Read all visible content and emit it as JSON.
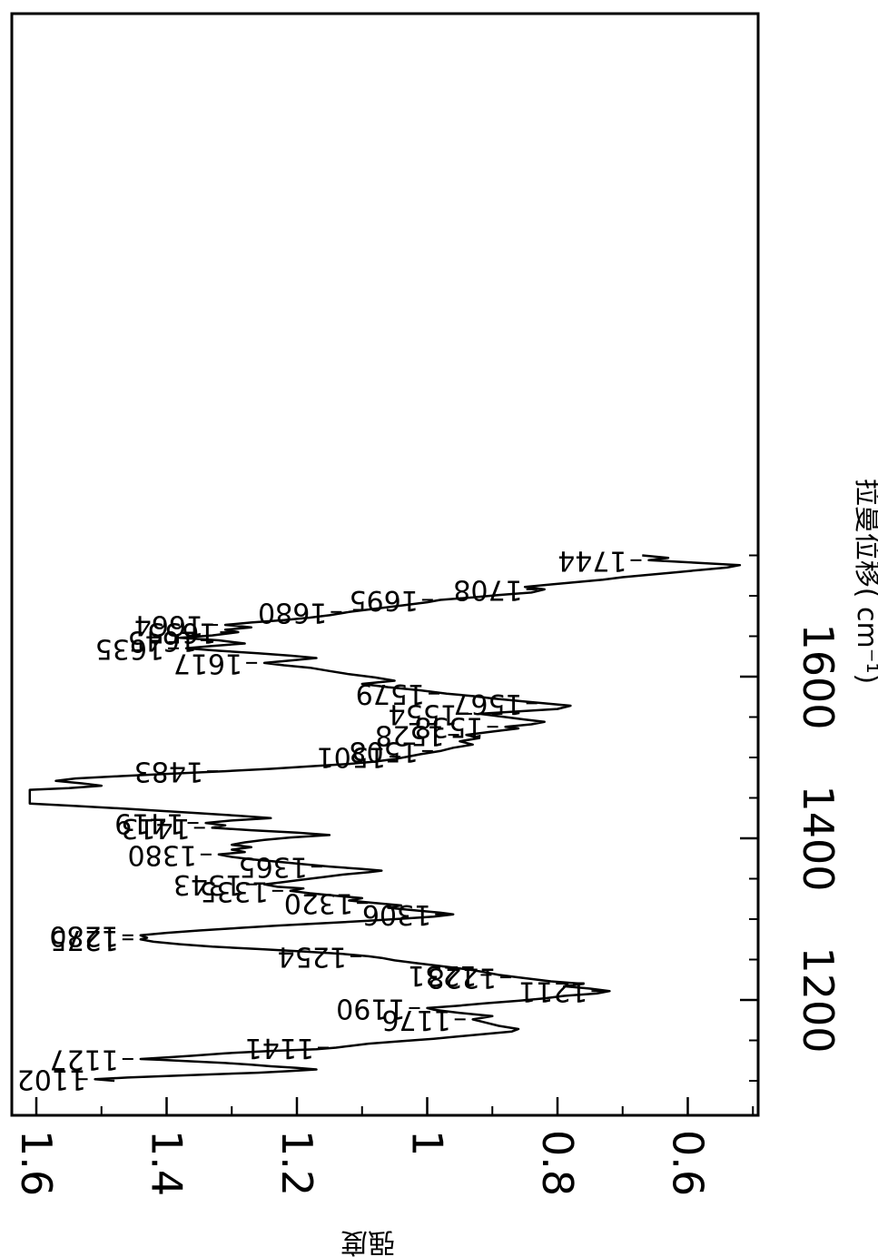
{
  "chart_data": {
    "type": "line",
    "orientation": "rotated-90-clockwise",
    "xlabel": "拉曼位移( cm⁻¹)",
    "ylabel": "强度",
    "xlim": [
      1090,
      1760
    ],
    "ylim": [
      0.5,
      1.6
    ],
    "x_ticks": [
      {
        "value": 1200,
        "label": "1200"
      },
      {
        "value": 1400,
        "label": "1400"
      },
      {
        "value": 1600,
        "label": "1600"
      }
    ],
    "y_ticks": [
      {
        "value": 1.6,
        "label": "1.6"
      },
      {
        "value": 1.4,
        "label": "1.4"
      },
      {
        "value": 1.2,
        "label": "1.2"
      },
      {
        "value": 1.0,
        "label": "1"
      },
      {
        "value": 0.8,
        "label": "0.8"
      },
      {
        "value": 0.6,
        "label": "0.6"
      }
    ],
    "grid": false,
    "series": [
      {
        "points": [
          [
            1100,
            1.48
          ],
          [
            1102,
            1.51
          ],
          [
            1104,
            1.46
          ],
          [
            1106,
            1.4
          ],
          [
            1108,
            1.33
          ],
          [
            1110,
            1.26
          ],
          [
            1112,
            1.21
          ],
          [
            1114,
            1.17
          ],
          [
            1116,
            1.2
          ],
          [
            1118,
            1.24
          ],
          [
            1120,
            1.27
          ],
          [
            1122,
            1.31
          ],
          [
            1124,
            1.36
          ],
          [
            1126,
            1.41
          ],
          [
            1127,
            1.44
          ],
          [
            1129,
            1.4
          ],
          [
            1131,
            1.36
          ],
          [
            1134,
            1.31
          ],
          [
            1137,
            1.24
          ],
          [
            1139,
            1.17
          ],
          [
            1141,
            1.14
          ],
          [
            1143,
            1.12
          ],
          [
            1146,
            1.09
          ],
          [
            1149,
            1.04
          ],
          [
            1152,
            0.99
          ],
          [
            1155,
            0.95
          ],
          [
            1158,
            0.91
          ],
          [
            1161,
            0.87
          ],
          [
            1164,
            0.86
          ],
          [
            1168,
            0.89
          ],
          [
            1172,
            0.91
          ],
          [
            1176,
            0.93
          ],
          [
            1180,
            0.9
          ],
          [
            1184,
            0.95
          ],
          [
            1188,
            0.99
          ],
          [
            1190,
            1.0
          ],
          [
            1193,
            0.95
          ],
          [
            1196,
            0.91
          ],
          [
            1199,
            0.86
          ],
          [
            1202,
            0.82
          ],
          [
            1205,
            0.79
          ],
          [
            1208,
            0.74
          ],
          [
            1211,
            0.72
          ],
          [
            1214,
            0.75
          ],
          [
            1217,
            0.79
          ],
          [
            1220,
            0.76
          ],
          [
            1223,
            0.81
          ],
          [
            1226,
            0.84
          ],
          [
            1228,
            0.86
          ],
          [
            1231,
            0.89
          ],
          [
            1234,
            0.91
          ],
          [
            1237,
            0.93
          ],
          [
            1240,
            0.96
          ],
          [
            1243,
            0.99
          ],
          [
            1246,
            1.02
          ],
          [
            1249,
            1.05
          ],
          [
            1252,
            1.07
          ],
          [
            1254,
            1.09
          ],
          [
            1257,
            1.13
          ],
          [
            1260,
            1.19
          ],
          [
            1263,
            1.26
          ],
          [
            1266,
            1.33
          ],
          [
            1269,
            1.38
          ],
          [
            1272,
            1.42
          ],
          [
            1275,
            1.44
          ],
          [
            1277,
            1.43
          ],
          [
            1280,
            1.44
          ],
          [
            1283,
            1.4
          ],
          [
            1286,
            1.35
          ],
          [
            1289,
            1.29
          ],
          [
            1292,
            1.23
          ],
          [
            1295,
            1.16
          ],
          [
            1298,
            1.09
          ],
          [
            1301,
            1.03
          ],
          [
            1303,
            0.99
          ],
          [
            1306,
            0.96
          ],
          [
            1308,
            0.98
          ],
          [
            1311,
            1.02
          ],
          [
            1314,
            1.06
          ],
          [
            1317,
            1.04
          ],
          [
            1320,
            1.08
          ],
          [
            1323,
            1.12
          ],
          [
            1326,
            1.1
          ],
          [
            1329,
            1.14
          ],
          [
            1332,
            1.18
          ],
          [
            1335,
            1.21
          ],
          [
            1338,
            1.19
          ],
          [
            1340,
            1.23
          ],
          [
            1343,
            1.25
          ],
          [
            1346,
            1.22
          ],
          [
            1349,
            1.19
          ],
          [
            1352,
            1.16
          ],
          [
            1355,
            1.13
          ],
          [
            1358,
            1.09
          ],
          [
            1360,
            1.07
          ],
          [
            1362,
            1.1
          ],
          [
            1365,
            1.15
          ],
          [
            1368,
            1.19
          ],
          [
            1371,
            1.23
          ],
          [
            1374,
            1.27
          ],
          [
            1377,
            1.3
          ],
          [
            1380,
            1.32
          ],
          [
            1383,
            1.28
          ],
          [
            1386,
            1.3
          ],
          [
            1389,
            1.27
          ],
          [
            1392,
            1.3
          ],
          [
            1395,
            1.28
          ],
          [
            1398,
            1.25
          ],
          [
            1401,
            1.21
          ],
          [
            1404,
            1.15
          ],
          [
            1407,
            1.2
          ],
          [
            1410,
            1.27
          ],
          [
            1413,
            1.33
          ],
          [
            1416,
            1.31
          ],
          [
            1419,
            1.34
          ],
          [
            1422,
            1.3
          ],
          [
            1425,
            1.24
          ],
          [
            1428,
            1.29
          ],
          [
            1431,
            1.35
          ],
          [
            1434,
            1.41
          ],
          [
            1437,
            1.47
          ],
          [
            1440,
            1.54
          ],
          [
            1443,
            1.61
          ],
          [
            1460,
            1.61
          ],
          [
            1462,
            1.55
          ],
          [
            1465,
            1.5
          ],
          [
            1468,
            1.53
          ],
          [
            1471,
            1.57
          ],
          [
            1474,
            1.54
          ],
          [
            1477,
            1.47
          ],
          [
            1480,
            1.39
          ],
          [
            1483,
            1.31
          ],
          [
            1486,
            1.24
          ],
          [
            1489,
            1.18
          ],
          [
            1492,
            1.12
          ],
          [
            1495,
            1.08
          ],
          [
            1498,
            1.05
          ],
          [
            1501,
            1.03
          ],
          [
            1504,
            1.01
          ],
          [
            1508,
            0.98
          ],
          [
            1512,
            0.96
          ],
          [
            1516,
            0.93
          ],
          [
            1520,
            0.95
          ],
          [
            1524,
            0.92
          ],
          [
            1528,
            0.94
          ],
          [
            1532,
            0.9
          ],
          [
            1536,
            0.86
          ],
          [
            1538,
            0.88
          ],
          [
            1541,
            0.84
          ],
          [
            1544,
            0.82
          ],
          [
            1547,
            0.85
          ],
          [
            1550,
            0.88
          ],
          [
            1554,
            0.92
          ],
          [
            1557,
            0.86
          ],
          [
            1560,
            0.8
          ],
          [
            1564,
            0.78
          ],
          [
            1567,
            0.82
          ],
          [
            1570,
            0.86
          ],
          [
            1573,
            0.9
          ],
          [
            1576,
            0.93
          ],
          [
            1579,
            0.97
          ],
          [
            1583,
            1.01
          ],
          [
            1587,
            1.06
          ],
          [
            1591,
            1.1
          ],
          [
            1595,
            1.05
          ],
          [
            1599,
            1.08
          ],
          [
            1603,
            1.12
          ],
          [
            1607,
            1.15
          ],
          [
            1611,
            1.18
          ],
          [
            1614,
            1.22
          ],
          [
            1617,
            1.25
          ],
          [
            1620,
            1.21
          ],
          [
            1623,
            1.17
          ],
          [
            1626,
            1.21
          ],
          [
            1629,
            1.26
          ],
          [
            1632,
            1.32
          ],
          [
            1635,
            1.37
          ],
          [
            1638,
            1.33
          ],
          [
            1641,
            1.28
          ],
          [
            1645,
            1.32
          ],
          [
            1648,
            1.38
          ],
          [
            1651,
            1.33
          ],
          [
            1655,
            1.29
          ],
          [
            1658,
            1.31
          ],
          [
            1661,
            1.27
          ],
          [
            1664,
            1.31
          ],
          [
            1667,
            1.27
          ],
          [
            1670,
            1.22
          ],
          [
            1673,
            1.18
          ],
          [
            1676,
            1.15
          ],
          [
            1680,
            1.12
          ],
          [
            1684,
            1.08
          ],
          [
            1688,
            1.04
          ],
          [
            1692,
            1.0
          ],
          [
            1695,
            0.98
          ],
          [
            1698,
            0.93
          ],
          [
            1701,
            0.89
          ],
          [
            1704,
            0.84
          ],
          [
            1708,
            0.82
          ],
          [
            1711,
            0.85
          ],
          [
            1714,
            0.81
          ],
          [
            1717,
            0.77
          ],
          [
            1720,
            0.73
          ],
          [
            1723,
            0.7
          ],
          [
            1726,
            0.66
          ],
          [
            1729,
            0.62
          ],
          [
            1732,
            0.58
          ],
          [
            1735,
            0.54
          ],
          [
            1738,
            0.52
          ],
          [
            1741,
            0.59
          ],
          [
            1744,
            0.66
          ],
          [
            1747,
            0.63
          ],
          [
            1750,
            0.67
          ]
        ]
      }
    ],
    "annotations": [
      {
        "x": 1102,
        "y": 1.51,
        "text": "1102"
      },
      {
        "x": 1127,
        "y": 1.44,
        "text": "1127"
      },
      {
        "x": 1141,
        "y": 1.14,
        "text": "1141"
      },
      {
        "x": 1176,
        "y": 0.93,
        "text": "1176"
      },
      {
        "x": 1190,
        "y": 1.0,
        "text": "1190"
      },
      {
        "x": 1211,
        "y": 0.72,
        "text": "1211"
      },
      {
        "x": 1228,
        "y": 0.86,
        "text": "1228"
      },
      {
        "x": 1231,
        "y": 0.89,
        "text": "1231"
      },
      {
        "x": 1254,
        "y": 1.09,
        "text": "1254"
      },
      {
        "x": 1275,
        "y": 1.44,
        "text": "1275"
      },
      {
        "x": 1280,
        "y": 1.44,
        "text": "1280"
      },
      {
        "x": 1306,
        "y": 0.96,
        "text": "1306"
      },
      {
        "x": 1320,
        "y": 1.08,
        "text": "1320"
      },
      {
        "x": 1335,
        "y": 1.21,
        "text": "1335"
      },
      {
        "x": 1343,
        "y": 1.25,
        "text": "1343"
      },
      {
        "x": 1365,
        "y": 1.15,
        "text": "1365"
      },
      {
        "x": 1380,
        "y": 1.32,
        "text": "1380"
      },
      {
        "x": 1413,
        "y": 1.33,
        "text": "1413"
      },
      {
        "x": 1419,
        "y": 1.34,
        "text": "1419"
      },
      {
        "x": 1483,
        "y": 1.31,
        "text": "1483"
      },
      {
        "x": 1501,
        "y": 1.03,
        "text": "1501"
      },
      {
        "x": 1508,
        "y": 0.98,
        "text": "1508"
      },
      {
        "x": 1528,
        "y": 0.94,
        "text": "1528"
      },
      {
        "x": 1538,
        "y": 0.88,
        "text": "1538"
      },
      {
        "x": 1554,
        "y": 0.92,
        "text": "1554"
      },
      {
        "x": 1567,
        "y": 0.82,
        "text": "1567"
      },
      {
        "x": 1579,
        "y": 0.97,
        "text": "1579"
      },
      {
        "x": 1617,
        "y": 1.25,
        "text": "1617"
      },
      {
        "x": 1635,
        "y": 1.37,
        "text": "1635"
      },
      {
        "x": 1645,
        "y": 1.32,
        "text": "1645"
      },
      {
        "x": 1655,
        "y": 1.29,
        "text": "1655"
      },
      {
        "x": 1664,
        "y": 1.31,
        "text": "1664"
      },
      {
        "x": 1680,
        "y": 1.12,
        "text": "1680"
      },
      {
        "x": 1695,
        "y": 0.98,
        "text": "1695"
      },
      {
        "x": 1708,
        "y": 0.82,
        "text": "1708"
      },
      {
        "x": 1744,
        "y": 0.66,
        "text": "1744"
      }
    ]
  }
}
